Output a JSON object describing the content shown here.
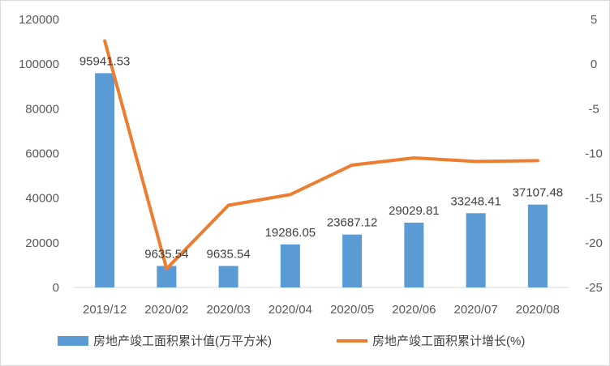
{
  "chart_data": {
    "type": "bar",
    "categories": [
      "2019/12",
      "2020/02",
      "2020/03",
      "2020/04",
      "2020/05",
      "2020/06",
      "2020/07",
      "2020/08"
    ],
    "series": [
      {
        "name": "房地产竣工面积累计值(万平方米)",
        "type": "bar",
        "axis": "left",
        "color": "#5b9bd5",
        "values": [
          95941.53,
          9635.54,
          9635.54,
          19286.05,
          23687.12,
          29029.81,
          33248.41,
          37107.48
        ],
        "labels": [
          "95941.53",
          "9635.54",
          "9635.54",
          "19286.05",
          "23687.12",
          "29029.81",
          "33248.41",
          "37107.48"
        ]
      },
      {
        "name": "房地产竣工面积累计增长(%)",
        "type": "line",
        "axis": "right",
        "color": "#ed7d31",
        "values": [
          2.6,
          -22.9,
          -15.8,
          -14.6,
          -11.3,
          -10.5,
          -10.9,
          -10.8
        ]
      }
    ],
    "y_left": {
      "min": 0,
      "max": 120000,
      "ticks": [
        "0",
        "20000",
        "40000",
        "60000",
        "80000",
        "100000",
        "120000"
      ]
    },
    "y_right": {
      "min": -25,
      "max": 5,
      "ticks": [
        "-25",
        "-20",
        "-15",
        "-10",
        "-5",
        "0",
        "5"
      ]
    },
    "grid": false,
    "legend": "bottom"
  }
}
